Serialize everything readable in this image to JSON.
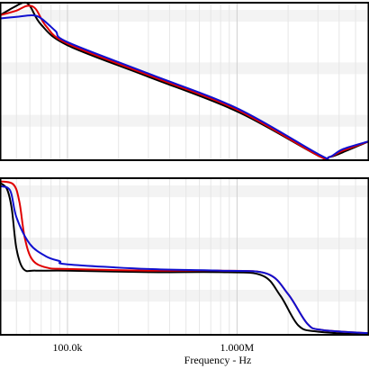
{
  "chart_data": {
    "type": "line",
    "xlabel": "Frequency - Hz",
    "x_scale": "log",
    "xlim": [
      40000,
      6000000
    ],
    "x_tick_labels": [
      {
        "value": 100000,
        "label": "100.0k"
      },
      {
        "value": 1000000,
        "label": "1.000M"
      }
    ],
    "grid": "minor vertical and horizontal bands (light gray)",
    "panels": [
      {
        "name": "top",
        "y_scale": "log-like",
        "ylim": [
          0,
          1
        ],
        "series": [
          {
            "color": "#000000",
            "x": [
              40000,
              48000,
              55000,
              60000,
              70000,
              100000,
              300000,
              1000000,
              3000000,
              3500000,
              4200000,
              6000000
            ],
            "y": [
              0.92,
              0.97,
              1.0,
              0.98,
              0.86,
              0.73,
              0.53,
              0.31,
              0.03,
              0.02,
              0.05,
              0.12
            ]
          },
          {
            "color": "#e00000",
            "x": [
              40000,
              50000,
              58000,
              65000,
              75000,
              100000,
              300000,
              1000000,
              3000000,
              3500000,
              4200000,
              6000000
            ],
            "y": [
              0.92,
              0.95,
              0.98,
              0.96,
              0.85,
              0.74,
              0.54,
              0.32,
              0.03,
              0.02,
              0.06,
              0.12
            ]
          },
          {
            "color": "#1010d0",
            "x": [
              40000,
              50000,
              62000,
              70000,
              85000,
              100000,
              300000,
              1000000,
              3000000,
              3500000,
              4200000,
              6000000
            ],
            "y": [
              0.9,
              0.91,
              0.92,
              0.9,
              0.82,
              0.75,
              0.55,
              0.33,
              0.04,
              0.02,
              0.07,
              0.12
            ]
          }
        ]
      },
      {
        "name": "bottom",
        "ylim": [
          0,
          1
        ],
        "series": [
          {
            "color": "#000000",
            "x": [
              40000,
              44000,
              47000,
              50000,
              55000,
              65000,
              100000,
              300000,
              800000,
              1400000,
              1800000,
              2300000,
              3000000,
              6000000
            ],
            "y": [
              0.97,
              0.93,
              0.8,
              0.55,
              0.42,
              0.41,
              0.41,
              0.4,
              0.4,
              0.38,
              0.25,
              0.06,
              0.02,
              0.0
            ]
          },
          {
            "color": "#e00000",
            "x": [
              40000,
              48000,
              52000,
              56000,
              62000,
              75000,
              100000,
              300000,
              800000,
              1500000,
              2000000,
              2600000,
              3200000,
              6000000
            ],
            "y": [
              0.98,
              0.96,
              0.85,
              0.62,
              0.48,
              0.43,
              0.42,
              0.41,
              0.41,
              0.39,
              0.26,
              0.07,
              0.03,
              0.01
            ]
          },
          {
            "color": "#1010d0",
            "x": [
              40000,
              46000,
              50000,
              60000,
              75000,
              90000,
              100000,
              300000,
              800000,
              1500000,
              2000000,
              2600000,
              3200000,
              6000000
            ],
            "y": [
              0.95,
              0.92,
              0.75,
              0.58,
              0.5,
              0.47,
              0.45,
              0.42,
              0.41,
              0.39,
              0.26,
              0.07,
              0.03,
              0.01
            ]
          }
        ]
      }
    ]
  }
}
